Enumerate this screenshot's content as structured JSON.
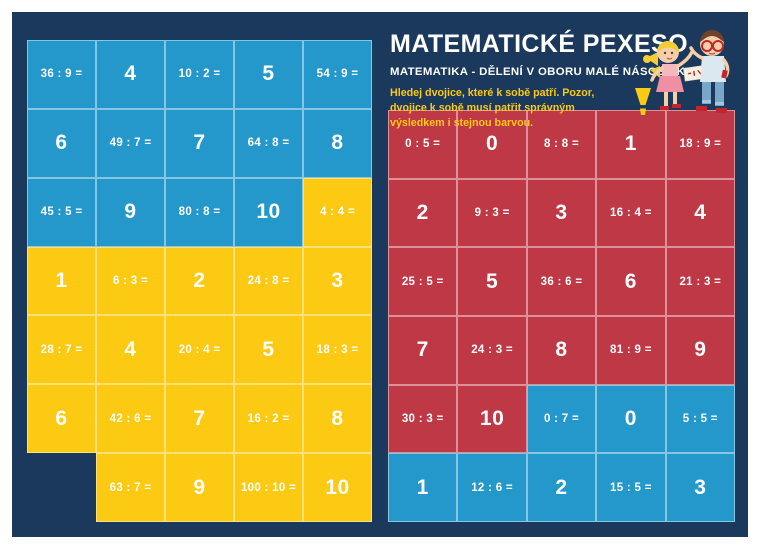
{
  "header": {
    "title": "MATEMATICKÉ PEXESO",
    "subtitle": "MATEMATIKA - DĚLENÍ V OBORU MALÉ NÁSOBILKY",
    "instruction": "Hledej dvojice, které k sobě patří. Pozor, dvojice k sobě musí patřit správným výsledkem i stejnou barvou.",
    "warning_icon": "warning-exclamation-icon",
    "illustration_icon": "kids-illustration"
  },
  "colors": {
    "navy_background": "#1a395d",
    "blue_card": "#2598cb",
    "yellow_card": "#fcc913",
    "red_card": "#bf3845",
    "text_white": "#ffffff",
    "instruction_yellow": "#fcc913",
    "frame_white": "#ffffff"
  },
  "left_grid": {
    "rows": [
      [
        {
          "t": "36 : 9 =",
          "c": "blue",
          "k": "eq"
        },
        {
          "t": "4",
          "c": "blue",
          "k": "ans"
        },
        {
          "t": "10 : 2 =",
          "c": "blue",
          "k": "eq"
        },
        {
          "t": "5",
          "c": "blue",
          "k": "ans"
        },
        {
          "t": "54 : 9 =",
          "c": "blue",
          "k": "eq"
        }
      ],
      [
        {
          "t": "6",
          "c": "blue",
          "k": "ans"
        },
        {
          "t": "49 : 7 =",
          "c": "blue",
          "k": "eq"
        },
        {
          "t": "7",
          "c": "blue",
          "k": "ans"
        },
        {
          "t": "64 : 8 =",
          "c": "blue",
          "k": "eq"
        },
        {
          "t": "8",
          "c": "blue",
          "k": "ans"
        }
      ],
      [
        {
          "t": "45 : 5 =",
          "c": "blue",
          "k": "eq"
        },
        {
          "t": "9",
          "c": "blue",
          "k": "ans"
        },
        {
          "t": "80 : 8 =",
          "c": "blue",
          "k": "eq"
        },
        {
          "t": "10",
          "c": "blue",
          "k": "ans"
        },
        {
          "t": "4 : 4 =",
          "c": "yellow",
          "k": "eq"
        }
      ],
      [
        {
          "t": "1",
          "c": "yellow",
          "k": "ans"
        },
        {
          "t": "6 : 3 =",
          "c": "yellow",
          "k": "eq"
        },
        {
          "t": "2",
          "c": "yellow",
          "k": "ans"
        },
        {
          "t": "24 : 8 =",
          "c": "yellow",
          "k": "eq"
        },
        {
          "t": "3",
          "c": "yellow",
          "k": "ans"
        }
      ],
      [
        {
          "t": "28 : 7 =",
          "c": "yellow",
          "k": "eq"
        },
        {
          "t": "4",
          "c": "yellow",
          "k": "ans"
        },
        {
          "t": "20 : 4 =",
          "c": "yellow",
          "k": "eq"
        },
        {
          "t": "5",
          "c": "yellow",
          "k": "ans"
        },
        {
          "t": "18 : 3 =",
          "c": "yellow",
          "k": "eq"
        }
      ],
      [
        {
          "t": "6",
          "c": "yellow",
          "k": "ans"
        },
        {
          "t": "42 : 6 =",
          "c": "yellow",
          "k": "eq"
        },
        {
          "t": "7",
          "c": "yellow",
          "k": "ans"
        },
        {
          "t": "16 : 2 =",
          "c": "yellow",
          "k": "eq"
        },
        {
          "t": "8",
          "c": "yellow",
          "k": "ans"
        }
      ],
      [
        {
          "t": "",
          "c": "empty",
          "k": "none"
        },
        {
          "t": "63 : 7 =",
          "c": "yellow",
          "k": "eq"
        },
        {
          "t": "9",
          "c": "yellow",
          "k": "ans"
        },
        {
          "t": "100 : 10 =",
          "c": "yellow",
          "k": "eq"
        },
        {
          "t": "10",
          "c": "yellow",
          "k": "ans"
        }
      ]
    ]
  },
  "right_grid": {
    "rows": [
      [
        {
          "t": "0 : 5 =",
          "c": "red",
          "k": "eq"
        },
        {
          "t": "0",
          "c": "red",
          "k": "ans"
        },
        {
          "t": "8 : 8 =",
          "c": "red",
          "k": "eq"
        },
        {
          "t": "1",
          "c": "red",
          "k": "ans"
        },
        {
          "t": "18 : 9 =",
          "c": "red",
          "k": "eq"
        }
      ],
      [
        {
          "t": "2",
          "c": "red",
          "k": "ans"
        },
        {
          "t": "9 : 3 =",
          "c": "red",
          "k": "eq"
        },
        {
          "t": "3",
          "c": "red",
          "k": "ans"
        },
        {
          "t": "16 : 4 =",
          "c": "red",
          "k": "eq"
        },
        {
          "t": "4",
          "c": "red",
          "k": "ans"
        }
      ],
      [
        {
          "t": "25 : 5 =",
          "c": "red",
          "k": "eq"
        },
        {
          "t": "5",
          "c": "red",
          "k": "ans"
        },
        {
          "t": "36 : 6 =",
          "c": "red",
          "k": "eq"
        },
        {
          "t": "6",
          "c": "red",
          "k": "ans"
        },
        {
          "t": "21 : 3 =",
          "c": "red",
          "k": "eq"
        }
      ],
      [
        {
          "t": "7",
          "c": "red",
          "k": "ans"
        },
        {
          "t": "24 : 3 =",
          "c": "red",
          "k": "eq"
        },
        {
          "t": "8",
          "c": "red",
          "k": "ans"
        },
        {
          "t": "81 : 9 =",
          "c": "red",
          "k": "eq"
        },
        {
          "t": "9",
          "c": "red",
          "k": "ans"
        }
      ],
      [
        {
          "t": "30 : 3 =",
          "c": "red",
          "k": "eq"
        },
        {
          "t": "10",
          "c": "red",
          "k": "ans"
        },
        {
          "t": "0 : 7 =",
          "c": "blue",
          "k": "eq"
        },
        {
          "t": "0",
          "c": "blue",
          "k": "ans"
        },
        {
          "t": "5 : 5 =",
          "c": "blue",
          "k": "eq"
        }
      ],
      [
        {
          "t": "1",
          "c": "blue",
          "k": "ans"
        },
        {
          "t": "12 : 6 =",
          "c": "blue",
          "k": "eq"
        },
        {
          "t": "2",
          "c": "blue",
          "k": "ans"
        },
        {
          "t": "15 : 5 =",
          "c": "blue",
          "k": "eq"
        },
        {
          "t": "3",
          "c": "blue",
          "k": "ans"
        }
      ]
    ]
  }
}
